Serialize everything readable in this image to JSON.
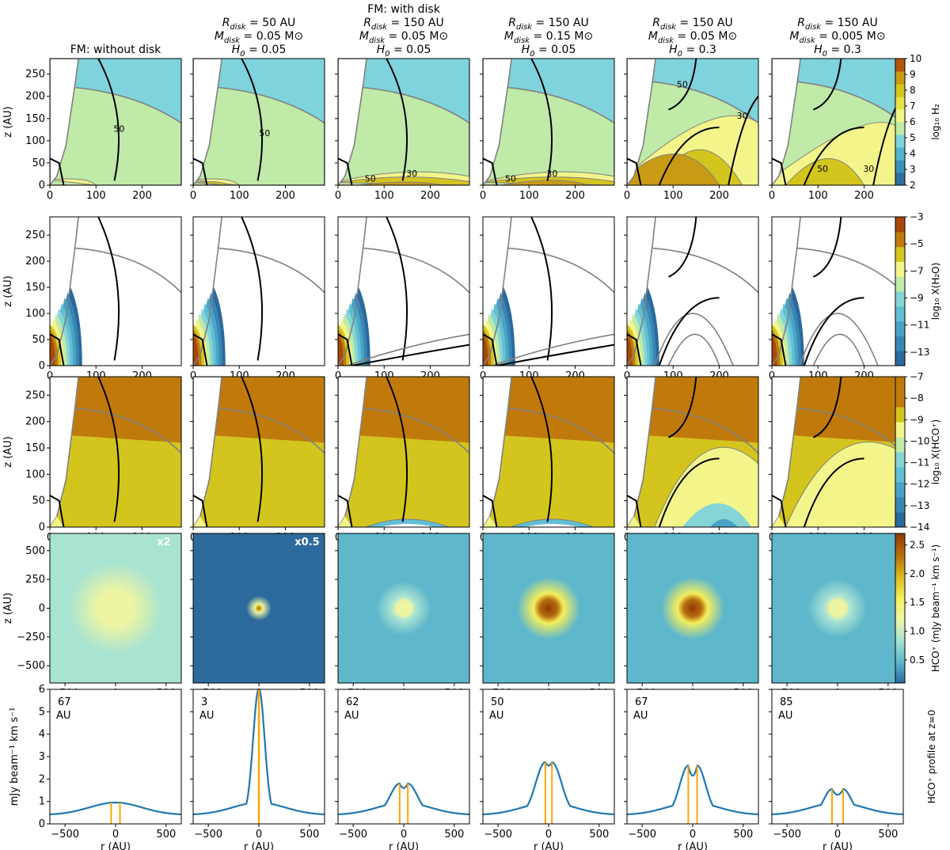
{
  "columns": [
    {
      "title_lines": [
        "FM: without disk"
      ]
    },
    {
      "title_lines": [
        "R_disk = 50 AU",
        "M_disk = 0.05 M⊙",
        "H_0 = 0.05"
      ]
    },
    {
      "title_lines": [
        "FM: with disk",
        "R_disk = 150 AU",
        "M_disk = 0.05 M⊙",
        "H_0 = 0.05"
      ]
    },
    {
      "title_lines": [
        "R_disk = 150 AU",
        "M_disk = 0.15 M⊙",
        "H_0 = 0.05"
      ]
    },
    {
      "title_lines": [
        "R_disk = 150 AU",
        "M_disk = 0.05 M⊙",
        "H_0 = 0.3"
      ]
    },
    {
      "title_lines": [
        "R_disk = 150 AU",
        "M_disk = 0.005 M⊙",
        "H_0 = 0.3"
      ]
    }
  ],
  "colors": {
    "line_blue": "#1f77b4",
    "marker_orange": "#ffa500",
    "contour_gray": "#808080",
    "contour_black": "#000000",
    "levels_h2": [
      "#2f6f9e",
      "#3c8fb8",
      "#55b3cc",
      "#7fd3dc",
      "#bfeaa8",
      "#f3f58a",
      "#e8e24a",
      "#d4c51e",
      "#c99a14",
      "#b5570a"
    ],
    "levels_chem": [
      "#2a6a9c",
      "#3a86b3",
      "#4aa3c6",
      "#62bfd3",
      "#86d5d6",
      "#bfeaa8",
      "#f3f58a",
      "#d4c51e",
      "#c07a0c",
      "#a8480a"
    ],
    "map_stops": [
      "#2c6a9d",
      "#5fb7cc",
      "#a9e3d2",
      "#eef5a1",
      "#f3ef5c",
      "#d8b91f",
      "#b86d0d",
      "#8f3a05"
    ]
  },
  "chart_data": [
    {
      "type": "heatmap",
      "row": "log10 H2 number density",
      "ylabel": "z (AU)",
      "xlim": [
        0,
        285
      ],
      "ylim": [
        0,
        285
      ],
      "xticks": [
        0,
        100,
        200
      ],
      "yticks": [
        0,
        50,
        100,
        150,
        200,
        250
      ],
      "colorbar": {
        "label": "log₁₀ H₂",
        "range": [
          2,
          10
        ],
        "ticks": [
          2,
          3,
          4,
          5,
          6,
          7,
          8,
          9,
          10
        ]
      },
      "contour_labels": [
        [
          "50"
        ],
        [
          "50"
        ],
        [
          "50",
          "30"
        ],
        [
          "50",
          "30"
        ],
        [
          "50",
          "30"
        ],
        [
          "50",
          "30"
        ]
      ]
    },
    {
      "type": "heatmap",
      "row": "log10 X(H2O)",
      "ylabel": "z (AU)",
      "xlim": [
        0,
        285
      ],
      "ylim": [
        0,
        285
      ],
      "xticks": [
        0,
        100,
        200
      ],
      "yticks": [
        0,
        50,
        100,
        150,
        200,
        250
      ],
      "colorbar": {
        "label": "log₁₀ X(H₂O)",
        "range": [
          -14,
          -3
        ],
        "ticks": [
          -3,
          -5,
          -7,
          -9,
          -11,
          -13
        ]
      }
    },
    {
      "type": "heatmap",
      "row": "log10 X(HCO+)",
      "ylabel": "z (AU)",
      "xlim": [
        0,
        285
      ],
      "ylim": [
        0,
        285
      ],
      "xticks": [
        0,
        100,
        200
      ],
      "yticks": [
        0,
        50,
        100,
        150,
        200,
        250
      ],
      "colorbar": {
        "label": "log₁₀ X(HCO⁺)",
        "range": [
          -14,
          -7
        ],
        "ticks": [
          -7,
          -8,
          -9,
          -10,
          -11,
          -12,
          -13,
          -14
        ]
      }
    },
    {
      "type": "heatmap",
      "row": "HCO+ integrated intensity map",
      "ylabel": "z (AU)",
      "xlim": [
        -650,
        650
      ],
      "ylim": [
        -650,
        650
      ],
      "xticks": [
        -500,
        0,
        500
      ],
      "yticks": [
        -500,
        -250,
        0,
        250,
        500
      ],
      "colorbar": {
        "label": "HCO⁺ (mJy beam⁻¹ km s⁻¹)",
        "range": [
          0.1,
          2.7
        ],
        "ticks": [
          0.5,
          1.0,
          1.5,
          2.0,
          2.5
        ]
      },
      "panels": [
        {
          "annotation": "x2",
          "peak": 1.35,
          "core_size": 90,
          "bg": 0.85,
          "halo": 220
        },
        {
          "annotation": "x0.5",
          "peak": 2.5,
          "core_size": 22,
          "bg": 0.2,
          "halo": 60
        },
        {
          "annotation": "",
          "peak": 1.35,
          "core_size": 65,
          "bg": 0.45,
          "halo": 130
        },
        {
          "annotation": "",
          "peak": 2.65,
          "core_size": 80,
          "bg": 0.4,
          "halo": 150
        },
        {
          "annotation": "",
          "peak": 2.55,
          "core_size": 80,
          "bg": 0.3,
          "halo": 150
        },
        {
          "annotation": "",
          "peak": 1.3,
          "core_size": 70,
          "bg": 0.45,
          "halo": 140
        }
      ]
    },
    {
      "type": "line",
      "row": "HCO+ profile at z=0",
      "ylabel": "mJy beam⁻¹ km s⁻¹",
      "xlabel": "r (AU)",
      "right_label": "HCO⁺ profile at z=0",
      "xlim": [
        -650,
        650
      ],
      "ylim": [
        0,
        6
      ],
      "xticks": [
        -500,
        0,
        500
      ],
      "yticks": [
        0,
        1,
        2,
        3,
        4,
        5,
        6
      ],
      "series": [
        {
          "peak_separation_au": 67,
          "label_value": "67",
          "label_unit": "AU",
          "peak": 0.95,
          "dip": 0.88,
          "bg": 0.4,
          "width": 110
        },
        {
          "peak_separation_au": 3,
          "label_value": "3",
          "label_unit": "AU",
          "peak": 6.0,
          "dip": 6.0,
          "bg": 0.4,
          "width": 55
        },
        {
          "peak_separation_au": 62,
          "label_value": "62",
          "label_unit": "AU",
          "peak": 1.8,
          "dip": 1.6,
          "bg": 0.4,
          "width": 95
        },
        {
          "peak_separation_au": 50,
          "label_value": "50",
          "label_unit": "AU",
          "peak": 2.75,
          "dip": 2.6,
          "bg": 0.4,
          "width": 95
        },
        {
          "peak_separation_au": 67,
          "label_value": "67",
          "label_unit": "AU",
          "peak": 2.6,
          "dip": 2.15,
          "bg": 0.4,
          "width": 85
        },
        {
          "peak_separation_au": 85,
          "label_value": "85",
          "label_unit": "AU",
          "peak": 1.55,
          "dip": 1.3,
          "bg": 0.4,
          "width": 80
        }
      ]
    }
  ]
}
